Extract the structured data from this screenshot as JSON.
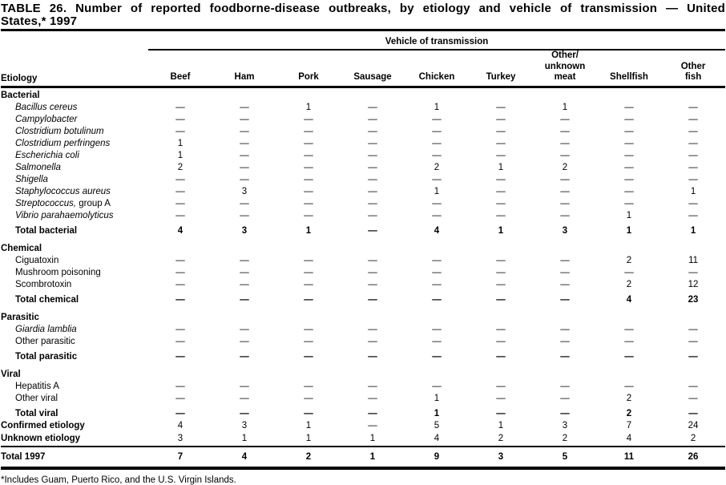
{
  "title": {
    "line1": "TABLE 26. Number of reported foodborne-disease outbreaks, by etiology and vehicle of transmission — United",
    "line2": "States,* 1997"
  },
  "table": {
    "group_header": "Vehicle of transmission",
    "etiology_header": "Etiology",
    "columns": [
      "Beef",
      "Ham",
      "Pork",
      "Sausage",
      "Chicken",
      "Turkey",
      "Other/\nunknown\nmeat",
      "Shellfish",
      "Other\nfish"
    ],
    "rows": [
      {
        "label": "Bacterial",
        "style": "section",
        "values": null
      },
      {
        "label": "Bacillus cereus",
        "style": "species",
        "values": [
          "—",
          "—",
          "1",
          "—",
          "1",
          "—",
          "1",
          "—",
          "—"
        ]
      },
      {
        "label": "Campylobacter",
        "style": "species",
        "values": [
          "—",
          "—",
          "—",
          "—",
          "—",
          "—",
          "—",
          "—",
          "—"
        ]
      },
      {
        "label": "Clostridium botulinum",
        "style": "species",
        "values": [
          "—",
          "—",
          "—",
          "—",
          "—",
          "—",
          "—",
          "—",
          "—"
        ]
      },
      {
        "label": "Clostridium perfringens",
        "style": "species",
        "values": [
          "1",
          "—",
          "—",
          "—",
          "—",
          "—",
          "—",
          "—",
          "—"
        ]
      },
      {
        "label": "Escherichia coli",
        "style": "species",
        "values": [
          "1",
          "—",
          "—",
          "—",
          "—",
          "—",
          "—",
          "—",
          "—"
        ]
      },
      {
        "label": "Salmonella",
        "style": "species",
        "values": [
          "2",
          "—",
          "—",
          "—",
          "2",
          "1",
          "2",
          "—",
          "—"
        ]
      },
      {
        "label": "Shigella",
        "style": "species",
        "values": [
          "—",
          "—",
          "—",
          "—",
          "—",
          "—",
          "—",
          "—",
          "—"
        ]
      },
      {
        "label": "Staphylococcus aureus",
        "style": "species",
        "values": [
          "—",
          "3",
          "—",
          "—",
          "1",
          "—",
          "—",
          "—",
          "1"
        ]
      },
      {
        "label": "Streptococcus,",
        "label_suffix": " group A",
        "style": "species",
        "values": [
          "—",
          "—",
          "—",
          "—",
          "—",
          "—",
          "—",
          "—",
          "—"
        ]
      },
      {
        "label": "Vibrio parahaemolyticus",
        "style": "species",
        "values": [
          "—",
          "—",
          "—",
          "—",
          "—",
          "—",
          "—",
          "1",
          "—"
        ]
      },
      {
        "label": "Total bacterial",
        "style": "total",
        "values": [
          "4",
          "3",
          "1",
          "—",
          "4",
          "1",
          "3",
          "1",
          "1"
        ]
      },
      {
        "label": "Chemical",
        "style": "section",
        "values": null
      },
      {
        "label": "Ciguatoxin",
        "style": "item",
        "values": [
          "—",
          "—",
          "—",
          "—",
          "—",
          "—",
          "—",
          "2",
          "11"
        ]
      },
      {
        "label": "Mushroom poisoning",
        "style": "item",
        "values": [
          "—",
          "—",
          "—",
          "—",
          "—",
          "—",
          "—",
          "—",
          "—"
        ]
      },
      {
        "label": "Scombrotoxin",
        "style": "item",
        "values": [
          "—",
          "—",
          "—",
          "—",
          "—",
          "—",
          "—",
          "2",
          "12"
        ]
      },
      {
        "label": "Total chemical",
        "style": "total",
        "values": [
          "—",
          "—",
          "—",
          "—",
          "—",
          "—",
          "—",
          "4",
          "23"
        ]
      },
      {
        "label": "Parasitic",
        "style": "section",
        "values": null
      },
      {
        "label": "Giardia lamblia",
        "style": "species",
        "values": [
          "—",
          "—",
          "—",
          "—",
          "—",
          "—",
          "—",
          "—",
          "—"
        ]
      },
      {
        "label": "Other parasitic",
        "style": "item",
        "values": [
          "—",
          "—",
          "—",
          "—",
          "—",
          "—",
          "—",
          "—",
          "—"
        ]
      },
      {
        "label": "Total parasitic",
        "style": "total",
        "values": [
          "—",
          "—",
          "—",
          "—",
          "—",
          "—",
          "—",
          "—",
          "—"
        ]
      },
      {
        "label": "Viral",
        "style": "section",
        "values": null
      },
      {
        "label": "Hepatitis A",
        "style": "item",
        "values": [
          "—",
          "—",
          "—",
          "—",
          "—",
          "—",
          "—",
          "—",
          "—"
        ]
      },
      {
        "label": "Other viral",
        "style": "item",
        "values": [
          "—",
          "—",
          "—",
          "—",
          "1",
          "—",
          "—",
          "2",
          "—"
        ]
      },
      {
        "label": "Total viral",
        "style": "total",
        "values": [
          "—",
          "—",
          "—",
          "—",
          "1",
          "—",
          "—",
          "2",
          "—"
        ]
      },
      {
        "label": "Confirmed etiology",
        "style": "summary",
        "values": [
          "4",
          "3",
          "1",
          "—",
          "5",
          "1",
          "3",
          "7",
          "24"
        ]
      },
      {
        "label": "Unknown etiology",
        "style": "summary",
        "values": [
          "3",
          "1",
          "1",
          "1",
          "4",
          "2",
          "2",
          "4",
          "2"
        ]
      },
      {
        "label": "Total 1997",
        "style": "grand",
        "values": [
          "7",
          "4",
          "2",
          "1",
          "9",
          "3",
          "5",
          "11",
          "26"
        ]
      }
    ]
  },
  "footnote": "*Includes Guam, Puerto Rico, and the U.S. Virgin Islands."
}
